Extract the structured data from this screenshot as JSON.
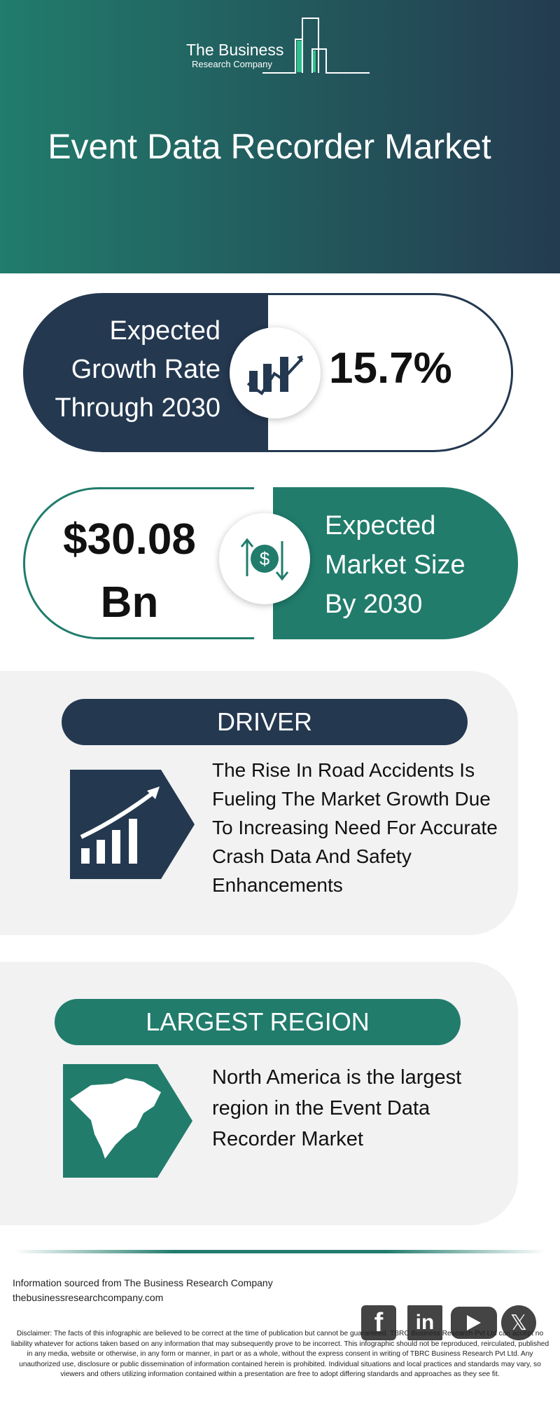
{
  "header": {
    "logo_line1": "The Business",
    "logo_line2": "Research Company",
    "title": "Event Data Recorder Market"
  },
  "growth": {
    "label": "Expected Growth Rate Through 2030",
    "value": "15.7%",
    "icon": "growth-chart-icon"
  },
  "size": {
    "value": "$30.08 Bn",
    "label": "Expected Market Size By 2030",
    "icon": "dollar-exchange-icon"
  },
  "driver": {
    "heading": "DRIVER",
    "text": "The Rise In Road Accidents Is Fueling The Market Growth Due To Increasing Need For Accurate Crash Data And Safety Enhancements",
    "icon": "rising-bars-icon"
  },
  "region": {
    "heading": "LARGEST REGION",
    "text": "North America is the largest region in the Event Data Recorder Market",
    "icon": "north-america-map-icon"
  },
  "footer": {
    "source": "Information sourced from The Business Research Company",
    "website": "thebusinessresearchcompany.com",
    "social": [
      "facebook",
      "linkedin",
      "youtube",
      "x"
    ],
    "disclaimer": "Disclaimer: The facts of this infographic are believed to be correct at the time of publication but cannot be guaranteed. TBRC Business Research Pvt Ltd can accept no liability whatever for actions taken based on any information that may subsequently prove to be incorrect. This infographic should not be reproduced, reirculated, published in any media, website or otherwise, in any form or manner, in part or as a whole, without the express consent in writing of TBRC Business Research Pvt Ltd. Any unauthorized use, disclosure or public dissemination of information contained herein is prohibited. Individual situations and local practices and standards may vary, so viewers and others utilizing information contained within a presentation are free to adopt differing standards and approaches as they see fit."
  },
  "colors": {
    "teal": "#217c6c",
    "navy": "#243850",
    "panel": "#f2f2f2"
  }
}
